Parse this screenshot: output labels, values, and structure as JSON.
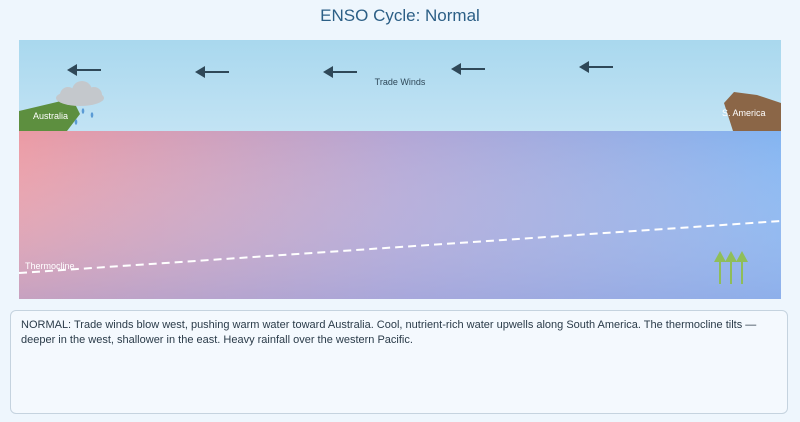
{
  "title": "ENSO Cycle: Normal",
  "labels": {
    "trade_winds": "Trade Winds",
    "australia": "Australia",
    "south_america": "S. America",
    "thermocline": "Thermocline"
  },
  "description": "NORMAL: Trade winds blow west, pushing warm water toward Australia. Cool, nutrient-rich water upwells along South America. The thermocline tilts — deeper in the west, shallower in the east. Heavy rainfall over the western Pacific.",
  "colors": {
    "sky_top": "#a9d8ee",
    "sky_bottom": "#c2e3f4",
    "ocean_warm": "#eb9aa4",
    "ocean_cool": "#83b4f1",
    "ocean_deep": "#a0a8dc",
    "australia_land": "#5d8f3f",
    "south_america_land": "#8b6647",
    "wind_arrow": "#2f4858",
    "upwelling_arrow": "#8fbf4a",
    "rain": "#5b9bd5",
    "cloud": "#c4c8cc",
    "thermocline_line": "#ffffff"
  },
  "icons": {
    "wind": "arrow-left-icon",
    "rain": "raindrop-icon",
    "cloud": "cloud-icon",
    "upwelling": "arrow-up-icon"
  }
}
